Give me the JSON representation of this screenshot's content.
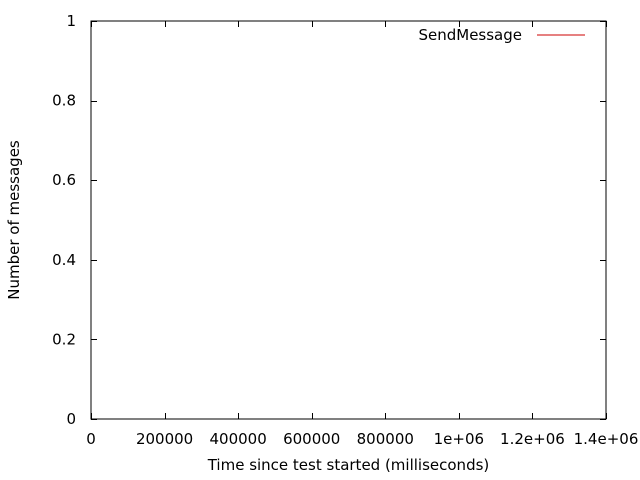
{
  "chart_data": {
    "type": "line",
    "xlabel": "Time since test started (milliseconds)",
    "ylabel": "Number of messages",
    "xlim": [
      0,
      1400000
    ],
    "ylim": [
      0,
      1
    ],
    "xticks": [
      0,
      200000,
      400000,
      600000,
      800000,
      1000000,
      1200000,
      1400000
    ],
    "xtick_labels": [
      "0",
      "200000",
      "400000",
      "600000",
      "800000",
      "1e+06",
      "1.2e+06",
      "1.4e+06"
    ],
    "yticks": [
      0,
      0.2,
      0.4,
      0.6,
      0.8,
      1
    ],
    "ytick_labels": [
      "0",
      "0.2",
      "0.4",
      "0.6",
      "0.8",
      "1"
    ],
    "grid": false,
    "legend_position": "top-right",
    "series": [
      {
        "name": "SendMessage",
        "color": "#cc0000",
        "x": [],
        "y": []
      }
    ]
  }
}
